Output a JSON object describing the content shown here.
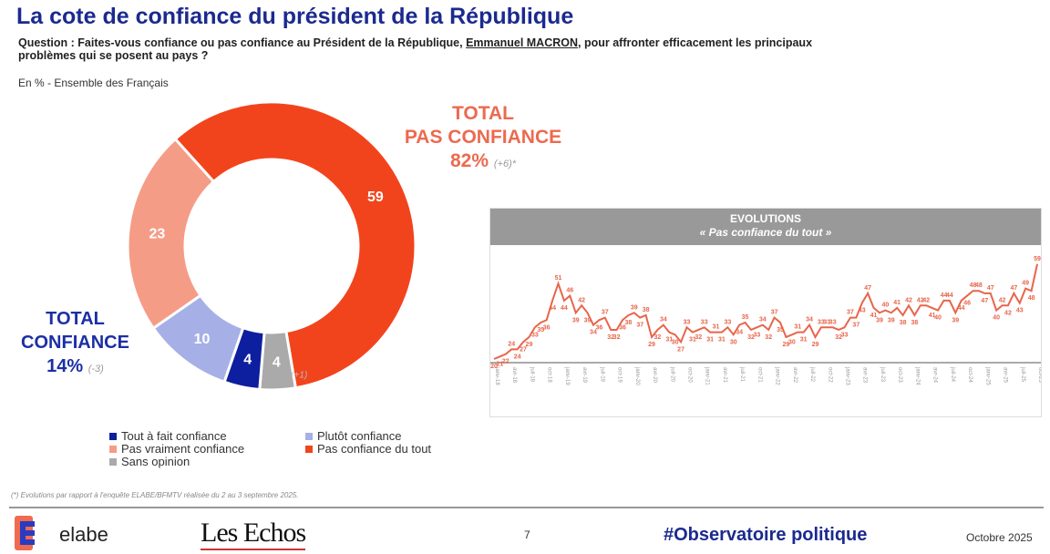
{
  "header": {
    "title": "La cote de confiance du président de la République",
    "question_pre": "Question : Faites-vous confiance ou pas confiance au Président de la République, ",
    "question_name": "Emmanuel MACRON",
    "question_post": ", pour affronter efficacement les principaux problèmes qui se posent au pays ?",
    "unit": "En % - Ensemble des Français"
  },
  "totals": {
    "pas_confiance_label1": "TOTAL",
    "pas_confiance_label2": "PAS CONFIANCE",
    "pas_confiance_value": "82%",
    "pas_confiance_delta": "(+6)*",
    "confiance_label1": "TOTAL",
    "confiance_label2": "CONFIANCE",
    "confiance_value": "14%",
    "confiance_delta": "(-3)"
  },
  "chart_data": [
    {
      "type": "pie",
      "donut": true,
      "slices": [
        {
          "name": "Pas confiance du tout",
          "value": 59,
          "color": "#f2441c"
        },
        {
          "name": "Sans opinion",
          "value": 4,
          "color": "#aaaaaa",
          "delta": "(+1)"
        },
        {
          "name": "Tout à fait confiance",
          "value": 4,
          "color": "#0d1f9e"
        },
        {
          "name": "Plutôt confiance",
          "value": 10,
          "color": "#a6b0e6"
        },
        {
          "name": "Pas vraiment confiance",
          "value": 23,
          "color": "#f59c87"
        }
      ]
    },
    {
      "type": "line",
      "title": "EVOLUTIONS",
      "subtitle": "« Pas confiance du tout »",
      "color": "#e8654a",
      "values": [
        20,
        21,
        22,
        24,
        24,
        27,
        29,
        33,
        35,
        36,
        44,
        51,
        44,
        46,
        39,
        42,
        39,
        34,
        36,
        37,
        32,
        32,
        36,
        38,
        39,
        37,
        38,
        29,
        32,
        34,
        31,
        30,
        27,
        33,
        31,
        32,
        33,
        31,
        31,
        31,
        33,
        30,
        34,
        35,
        32,
        33,
        34,
        32,
        37,
        35,
        29,
        30,
        31,
        31,
        34,
        29,
        33,
        33,
        33,
        32,
        33,
        37,
        37,
        43,
        47,
        41,
        39,
        40,
        39,
        41,
        38,
        42,
        38,
        42,
        42,
        41,
        40,
        44,
        44,
        39,
        44,
        46,
        48,
        48,
        47,
        47,
        40,
        42,
        42,
        47,
        43,
        49,
        48,
        59
      ],
      "x_ticks": [
        "janv-18",
        "avr-18",
        "juil-18",
        "oct-18",
        "janv-19",
        "avr-19",
        "juil-19",
        "oct-19",
        "janv-20",
        "avr-20",
        "juil-20",
        "oct-20",
        "janv-21",
        "avr-21",
        "juil-21",
        "oct-21",
        "janv-22",
        "avr-22",
        "juil-22",
        "oct-22",
        "janv-23",
        "avr-23",
        "juil-23",
        "oct-23",
        "janv-24",
        "avr-24",
        "juil-24",
        "oct-24",
        "janv-25",
        "avr-25",
        "juil-25",
        "oct-25"
      ]
    }
  ],
  "footer": {
    "footnote": "(*) Evolutions par rapport à l'enquête ELABE/BFMTV réalisée du 2 au 3 septembre 2025.",
    "elabe": "elabe",
    "lesechos": "Les Echos",
    "page": "7",
    "hashtag": "#Observatoire politique",
    "date": "Octobre 2025"
  }
}
